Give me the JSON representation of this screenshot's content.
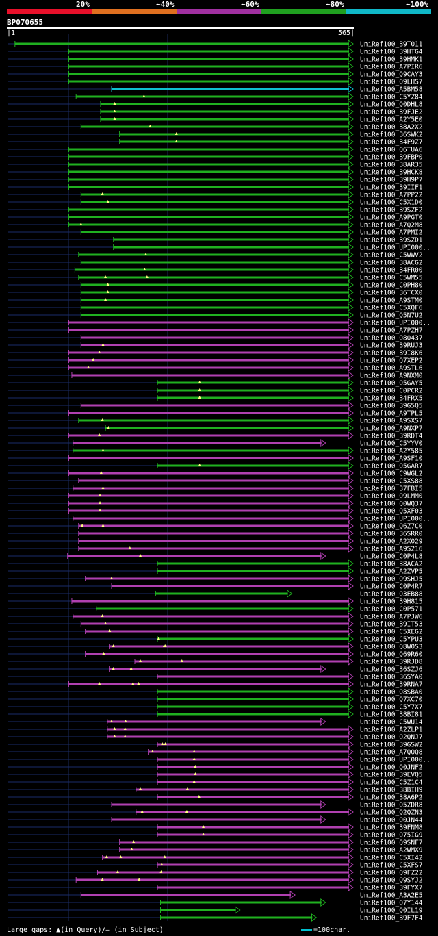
{
  "legend": {
    "labels": [
      "20%",
      "~40%",
      "~60%",
      "~80%",
      "~100%"
    ],
    "colors": [
      "#e8102a",
      "#e07020",
      "#a030a0",
      "#20a020",
      "#10b8c8"
    ]
  },
  "query": {
    "name": "BP070655",
    "start": "1",
    "end": "565"
  },
  "footer": {
    "gaps_text": "Large gaps: ▲(in Query)/– (in Subject)",
    "scale_text": "=100char."
  },
  "chart_data": {
    "type": "alignment-graph",
    "title": "BP070655",
    "query_length": 565,
    "hits": [
      {
        "name": "UniRef100_B9T011",
        "start": 12,
        "end": 565,
        "color": "green",
        "gaps": []
      },
      {
        "name": "UniRef100_B9HTG4",
        "start": 100,
        "end": 565,
        "color": "green",
        "gaps": []
      },
      {
        "name": "UniRef100_B9HMK1",
        "start": 100,
        "end": 565,
        "color": "green",
        "gaps": []
      },
      {
        "name": "UniRef100_A7PIR6",
        "start": 100,
        "end": 565,
        "color": "green",
        "gaps": []
      },
      {
        "name": "UniRef100_Q9CAY3",
        "start": 100,
        "end": 565,
        "color": "green",
        "gaps": []
      },
      {
        "name": "UniRef100_Q9LHS7",
        "start": 100,
        "end": 565,
        "color": "green",
        "gaps": []
      },
      {
        "name": "UniRef100_A5BM58",
        "start": 170,
        "end": 565,
        "color": "cyan",
        "gaps": []
      },
      {
        "name": "UniRef100_C5YZ84",
        "start": 112,
        "end": 565,
        "color": "green",
        "gaps": [
          223
        ]
      },
      {
        "name": "UniRef100_Q0DHL8",
        "start": 152,
        "end": 565,
        "color": "green",
        "gaps": [
          175
        ]
      },
      {
        "name": "UniRef100_B9FJE2",
        "start": 152,
        "end": 565,
        "color": "green",
        "gaps": [
          175
        ]
      },
      {
        "name": "UniRef100_A2Y5E0",
        "start": 152,
        "end": 565,
        "color": "green",
        "gaps": [
          175
        ]
      },
      {
        "name": "UniRef100_B8A2X2",
        "start": 120,
        "end": 565,
        "color": "green",
        "gaps": [
          233
        ]
      },
      {
        "name": "UniRef100_B6SWK2",
        "start": 183,
        "end": 565,
        "color": "green",
        "gaps": [
          276
        ]
      },
      {
        "name": "UniRef100_B4F9Z7",
        "start": 183,
        "end": 565,
        "color": "green",
        "gaps": [
          276
        ]
      },
      {
        "name": "UniRef100_Q6TUA6",
        "start": 100,
        "end": 565,
        "color": "green",
        "gaps": []
      },
      {
        "name": "UniRef100_B9FBP0",
        "start": 100,
        "end": 565,
        "color": "green",
        "gaps": []
      },
      {
        "name": "UniRef100_B8AR35",
        "start": 100,
        "end": 565,
        "color": "green",
        "gaps": []
      },
      {
        "name": "UniRef100_B9HCK8",
        "start": 100,
        "end": 565,
        "color": "green",
        "gaps": []
      },
      {
        "name": "UniRef100_B9H9P7",
        "start": 100,
        "end": 565,
        "color": "green",
        "gaps": []
      },
      {
        "name": "UniRef100_B9IIF1",
        "start": 100,
        "end": 565,
        "color": "green",
        "gaps": []
      },
      {
        "name": "UniRef100_A7PP22",
        "start": 120,
        "end": 565,
        "color": "green",
        "gaps": [
          155
        ]
      },
      {
        "name": "UniRef100_C5X1D0",
        "start": 120,
        "end": 565,
        "color": "green",
        "gaps": [
          164
        ]
      },
      {
        "name": "UniRef100_B9SZF2",
        "start": 100,
        "end": 565,
        "color": "green",
        "gaps": []
      },
      {
        "name": "UniRef100_A9PGT0",
        "start": 100,
        "end": 565,
        "color": "green",
        "gaps": []
      },
      {
        "name": "UniRef100_A7Q2M8",
        "start": 100,
        "end": 565,
        "color": "green",
        "gaps": [
          120
        ]
      },
      {
        "name": "UniRef100_A7PMI2",
        "start": 120,
        "end": 565,
        "color": "green",
        "gaps": []
      },
      {
        "name": "UniRef100_B9SZD1",
        "start": 173,
        "end": 565,
        "color": "green",
        "gaps": []
      },
      {
        "name": "UniRef100_UPI000..",
        "start": 173,
        "end": 565,
        "color": "green",
        "gaps": []
      },
      {
        "name": "UniRef100_C5WWV2",
        "start": 116,
        "end": 565,
        "color": "green",
        "gaps": [
          226
        ]
      },
      {
        "name": "UniRef100_B8ACG2",
        "start": 120,
        "end": 565,
        "color": "green",
        "gaps": []
      },
      {
        "name": "UniRef100_B4FR00",
        "start": 110,
        "end": 565,
        "color": "green",
        "gaps": [
          224
        ]
      },
      {
        "name": "UniRef100_C5WM55",
        "start": 116,
        "end": 565,
        "color": "green",
        "gaps": [
          160,
          228
        ]
      },
      {
        "name": "UniRef100_C0PH80",
        "start": 120,
        "end": 565,
        "color": "green",
        "gaps": [
          164
        ]
      },
      {
        "name": "UniRef100_B6TCX0",
        "start": 120,
        "end": 565,
        "color": "green",
        "gaps": [
          164
        ]
      },
      {
        "name": "UniRef100_A9STM0",
        "start": 120,
        "end": 565,
        "color": "green",
        "gaps": [
          160
        ]
      },
      {
        "name": "UniRef100_C5XQF6",
        "start": 120,
        "end": 565,
        "color": "green",
        "gaps": []
      },
      {
        "name": "UniRef100_Q5N7U2",
        "start": 120,
        "end": 565,
        "color": "green",
        "gaps": []
      },
      {
        "name": "UniRef100_UPI000..",
        "start": 100,
        "end": 565,
        "color": "magenta",
        "gaps": []
      },
      {
        "name": "UniRef100_A7PZH7",
        "start": 100,
        "end": 565,
        "color": "magenta",
        "gaps": []
      },
      {
        "name": "UniRef100_O80437",
        "start": 120,
        "end": 565,
        "color": "magenta",
        "gaps": []
      },
      {
        "name": "UniRef100_B9RUJ3",
        "start": 120,
        "end": 565,
        "color": "magenta",
        "gaps": [
          156
        ]
      },
      {
        "name": "UniRef100_B9I8K6",
        "start": 100,
        "end": 565,
        "color": "magenta",
        "gaps": [
          150
        ]
      },
      {
        "name": "UniRef100_Q7XEP2",
        "start": 100,
        "end": 565,
        "color": "magenta",
        "gaps": [
          140
        ]
      },
      {
        "name": "UniRef100_A9STL6",
        "start": 100,
        "end": 565,
        "color": "magenta",
        "gaps": [
          132
        ]
      },
      {
        "name": "UniRef100_A9NXM0",
        "start": 105,
        "end": 565,
        "color": "magenta",
        "gaps": []
      },
      {
        "name": "UniRef100_Q5GAY5",
        "start": 245,
        "end": 565,
        "color": "green",
        "gaps": [
          314
        ]
      },
      {
        "name": "UniRef100_C0PCR2",
        "start": 245,
        "end": 565,
        "color": "green",
        "gaps": [
          314
        ]
      },
      {
        "name": "UniRef100_B4FRX5",
        "start": 245,
        "end": 565,
        "color": "green",
        "gaps": [
          314
        ]
      },
      {
        "name": "UniRef100_B9G5Q5",
        "start": 120,
        "end": 565,
        "color": "magenta",
        "gaps": []
      },
      {
        "name": "UniRef100_A9TPL5",
        "start": 100,
        "end": 565,
        "color": "magenta",
        "gaps": []
      },
      {
        "name": "UniRef100_A9SXS7",
        "start": 116,
        "end": 565,
        "color": "green",
        "gaps": [
          155
        ]
      },
      {
        "name": "UniRef100_A9NXP7",
        "start": 160,
        "end": 565,
        "color": "green",
        "gaps": [
          165
        ]
      },
      {
        "name": "UniRef100_B9RDT4",
        "start": 100,
        "end": 565,
        "color": "magenta",
        "gaps": [
          150
        ]
      },
      {
        "name": "UniRef100_C5YYV0",
        "start": 107,
        "end": 520,
        "color": "magenta",
        "gaps": []
      },
      {
        "name": "UniRef100_A2Y585",
        "start": 107,
        "end": 565,
        "color": "green",
        "gaps": [
          156
        ]
      },
      {
        "name": "UniRef100_A9SF10",
        "start": 100,
        "end": 565,
        "color": "magenta",
        "gaps": []
      },
      {
        "name": "UniRef100_Q5GAR7",
        "start": 245,
        "end": 565,
        "color": "green",
        "gaps": [
          314
        ]
      },
      {
        "name": "UniRef100_C9WGL2",
        "start": 100,
        "end": 565,
        "color": "magenta",
        "gaps": [
          153
        ]
      },
      {
        "name": "UniRef100_C5XS88",
        "start": 116,
        "end": 565,
        "color": "magenta",
        "gaps": []
      },
      {
        "name": "UniRef100_B7FBI5",
        "start": 107,
        "end": 565,
        "color": "magenta",
        "gaps": [
          156
        ]
      },
      {
        "name": "UniRef100_Q9LMM0",
        "start": 100,
        "end": 565,
        "color": "magenta",
        "gaps": [
          151
        ]
      },
      {
        "name": "UniRef100_Q0WQ37",
        "start": 100,
        "end": 565,
        "color": "magenta",
        "gaps": [
          151
        ]
      },
      {
        "name": "UniRef100_Q5XF03",
        "start": 100,
        "end": 565,
        "color": "magenta",
        "gaps": [
          151
        ]
      },
      {
        "name": "UniRef100_UPI000..",
        "start": 107,
        "end": 565,
        "color": "magenta",
        "gaps": []
      },
      {
        "name": "UniRef100_Q6Z7C0",
        "start": 116,
        "end": 565,
        "color": "magenta",
        "gaps": [
          122,
          156
        ]
      },
      {
        "name": "UniRef100_B6SRR0",
        "start": 116,
        "end": 565,
        "color": "magenta",
        "gaps": []
      },
      {
        "name": "UniRef100_A2X029",
        "start": 116,
        "end": 565,
        "color": "magenta",
        "gaps": []
      },
      {
        "name": "UniRef100_A9S216",
        "start": 116,
        "end": 565,
        "color": "magenta",
        "gaps": [
          200
        ]
      },
      {
        "name": "UniRef100_C0P4L8",
        "start": 98,
        "end": 520,
        "color": "magenta",
        "gaps": [
          217
        ]
      },
      {
        "name": "UniRef100_B8ACA2",
        "start": 245,
        "end": 565,
        "color": "green",
        "gaps": []
      },
      {
        "name": "UniRef100_A2ZVP5",
        "start": 245,
        "end": 565,
        "color": "green",
        "gaps": []
      },
      {
        "name": "UniRef100_Q9SHJ5",
        "start": 127,
        "end": 565,
        "color": "magenta",
        "gaps": [
          170
        ]
      },
      {
        "name": "UniRef100_C0P4R7",
        "start": 170,
        "end": 565,
        "color": "magenta",
        "gaps": []
      },
      {
        "name": "UniRef100_Q3EB88",
        "start": 242,
        "end": 465,
        "color": "green",
        "gaps": []
      },
      {
        "name": "UniRef100_B9H815",
        "start": 105,
        "end": 565,
        "color": "magenta",
        "gaps": []
      },
      {
        "name": "UniRef100_C0P571",
        "start": 145,
        "end": 565,
        "color": "green",
        "gaps": []
      },
      {
        "name": "UniRef100_A7PJW6",
        "start": 107,
        "end": 565,
        "color": "magenta",
        "gaps": [
          155
        ]
      },
      {
        "name": "UniRef100_B9IT53",
        "start": 120,
        "end": 565,
        "color": "magenta",
        "gaps": [
          160
        ]
      },
      {
        "name": "UniRef100_C5XEG2",
        "start": 127,
        "end": 565,
        "color": "magenta",
        "gaps": [
          167
        ]
      },
      {
        "name": "UniRef100_C5YPU3",
        "start": 245,
        "end": 565,
        "color": "green",
        "gaps": [
          247
        ]
      },
      {
        "name": "UniRef100_Q8W0S3",
        "start": 167,
        "end": 565,
        "color": "magenta",
        "gaps": [
          173,
          256,
          258
        ]
      },
      {
        "name": "UniRef100_Q69R60",
        "start": 127,
        "end": 565,
        "color": "magenta",
        "gaps": [
          157
        ]
      },
      {
        "name": "UniRef100_B9RJD8",
        "start": 208,
        "end": 565,
        "color": "magenta",
        "gaps": [
          217,
          285
        ]
      },
      {
        "name": "UniRef100_B6SZJ6",
        "start": 167,
        "end": 520,
        "color": "magenta",
        "gaps": [
          173,
          202
        ]
      },
      {
        "name": "UniRef100_B6SYA0",
        "start": 245,
        "end": 565,
        "color": "magenta",
        "gaps": []
      },
      {
        "name": "UniRef100_B9RNA7",
        "start": 100,
        "end": 565,
        "color": "magenta",
        "gaps": [
          150,
          205,
          214
        ]
      },
      {
        "name": "UniRef100_Q8SBA0",
        "start": 245,
        "end": 565,
        "color": "green",
        "gaps": []
      },
      {
        "name": "UniRef100_Q7XC70",
        "start": 245,
        "end": 565,
        "color": "green",
        "gaps": []
      },
      {
        "name": "UniRef100_C5Y7X7",
        "start": 245,
        "end": 565,
        "color": "green",
        "gaps": []
      },
      {
        "name": "UniRef100_B8BI81",
        "start": 245,
        "end": 565,
        "color": "green",
        "gaps": []
      },
      {
        "name": "UniRef100_C5WU14",
        "start": 163,
        "end": 520,
        "color": "magenta",
        "gaps": [
          170,
          193
        ]
      },
      {
        "name": "UniRef100_A2ZLP1",
        "start": 163,
        "end": 565,
        "color": "magenta",
        "gaps": [
          175,
          192
        ]
      },
      {
        "name": "UniRef100_Q2QNJ7",
        "start": 163,
        "end": 565,
        "color": "magenta",
        "gaps": [
          175,
          192
        ]
      },
      {
        "name": "UniRef100_B9GSW2",
        "start": 245,
        "end": 565,
        "color": "magenta",
        "gaps": [
          253,
          258
        ]
      },
      {
        "name": "UniRef100_A7QOQ8",
        "start": 230,
        "end": 565,
        "color": "magenta",
        "gaps": [
          237,
          305
        ]
      },
      {
        "name": "UniRef100_UPI000..",
        "start": 245,
        "end": 565,
        "color": "magenta",
        "gaps": [
          305
        ]
      },
      {
        "name": "UniRef100_Q0JNF2",
        "start": 245,
        "end": 565,
        "color": "magenta",
        "gaps": [
          307
        ]
      },
      {
        "name": "UniRef100_B9EVQ5",
        "start": 245,
        "end": 565,
        "color": "magenta",
        "gaps": [
          307
        ]
      },
      {
        "name": "UniRef100_C5Z1C4",
        "start": 245,
        "end": 565,
        "color": "magenta",
        "gaps": [
          305
        ]
      },
      {
        "name": "UniRef100_B8BIH9",
        "start": 210,
        "end": 565,
        "color": "magenta",
        "gaps": [
          217,
          294
        ]
      },
      {
        "name": "UniRef100_B8A6P2",
        "start": 245,
        "end": 565,
        "color": "magenta",
        "gaps": [
          313
        ]
      },
      {
        "name": "UniRef100_Q5ZDR8",
        "start": 170,
        "end": 520,
        "color": "magenta",
        "gaps": []
      },
      {
        "name": "UniRef100_Q2QZN3",
        "start": 210,
        "end": 565,
        "color": "magenta",
        "gaps": [
          220,
          293
        ]
      },
      {
        "name": "UniRef100_Q0JN44",
        "start": 170,
        "end": 520,
        "color": "magenta",
        "gaps": []
      },
      {
        "name": "UniRef100_B9FNM8",
        "start": 245,
        "end": 565,
        "color": "magenta",
        "gaps": [
          320
        ]
      },
      {
        "name": "UniRef100_Q75IG9",
        "start": 245,
        "end": 565,
        "color": "magenta",
        "gaps": [
          320
        ]
      },
      {
        "name": "UniRef100_Q9SNF7",
        "start": 183,
        "end": 565,
        "color": "magenta",
        "gaps": [
          206
        ]
      },
      {
        "name": "UniRef100_A2WMX9",
        "start": 183,
        "end": 565,
        "color": "magenta",
        "gaps": [
          203
        ]
      },
      {
        "name": "UniRef100_C5XI42",
        "start": 155,
        "end": 565,
        "color": "magenta",
        "gaps": [
          162,
          185,
          257
        ]
      },
      {
        "name": "UniRef100_C5XFS7",
        "start": 245,
        "end": 565,
        "color": "magenta",
        "gaps": [
          252
        ]
      },
      {
        "name": "UniRef100_Q9FZ22",
        "start": 147,
        "end": 565,
        "color": "magenta",
        "gaps": [
          180,
          251
        ]
      },
      {
        "name": "UniRef100_Q9SYJ2",
        "start": 112,
        "end": 565,
        "color": "magenta",
        "gaps": [
          155,
          215
        ]
      },
      {
        "name": "UniRef100_B9FYX7",
        "start": 245,
        "end": 565,
        "color": "magenta",
        "gaps": []
      },
      {
        "name": "UniRef100_A3A2E5",
        "start": 120,
        "end": 470,
        "color": "magenta",
        "gaps": []
      },
      {
        "name": "UniRef100_Q7Y144",
        "start": 250,
        "end": 520,
        "color": "green",
        "gaps": []
      },
      {
        "name": "UniRef100_Q0IL19",
        "start": 250,
        "end": 380,
        "color": "green",
        "gaps": []
      },
      {
        "name": "UniRef100_B9F7F4",
        "start": 250,
        "end": 505,
        "color": "green",
        "gaps": []
      }
    ]
  }
}
